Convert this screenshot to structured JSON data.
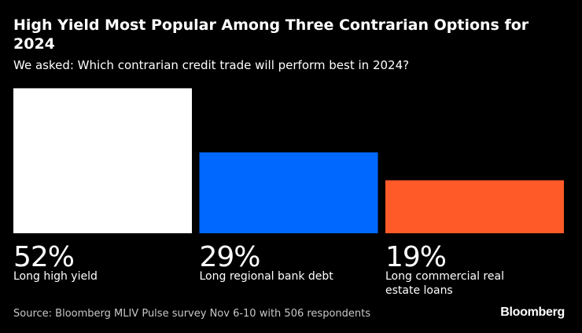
{
  "header": {
    "title": "High Yield Most Popular Among Three Contrarian Options for 2024",
    "subtitle": "We asked: Which contrarian credit trade will perform best in 2024?"
  },
  "footer": {
    "source": "Source: Bloomberg MLIV Pulse survey Nov 6-10 with 506 respondents",
    "brand": "Bloomberg"
  },
  "colors": {
    "background": "#000000",
    "text": "#ffffff"
  },
  "chart_data": {
    "type": "bar",
    "title": "High Yield Most Popular Among Three Contrarian Options for 2024",
    "subtitle": "We asked: Which contrarian credit trade will perform best in 2024?",
    "categories": [
      "Long high yield",
      "Long regional bank debt",
      "Long commercial real estate loans"
    ],
    "values": [
      52,
      29,
      19
    ],
    "value_labels": [
      "52%",
      "29%",
      "19%"
    ],
    "colors": [
      "#ffffff",
      "#0068ff",
      "#ff5a27"
    ],
    "unit": "%",
    "ylim": [
      0,
      100
    ],
    "xlabel": "",
    "ylabel": "",
    "grid": false
  }
}
